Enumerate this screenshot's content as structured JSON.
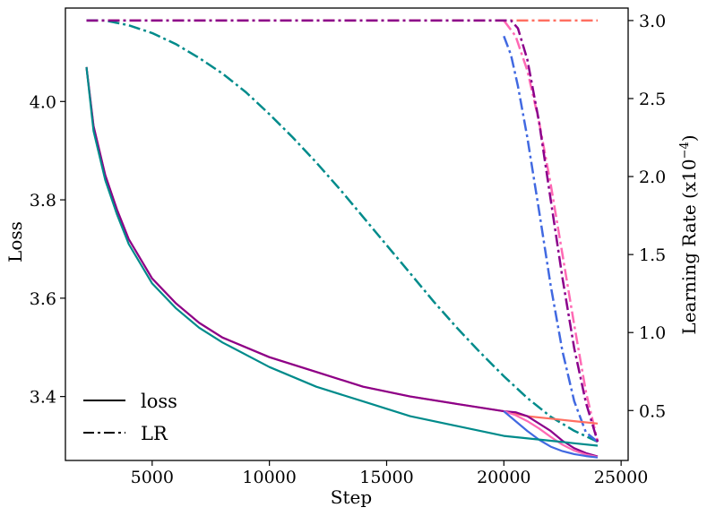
{
  "chart_data": {
    "type": "line",
    "xlabel": "Step",
    "ylabel_left": "Loss",
    "ylabel_right": "Learning Rate (x10",
    "ylabel_right_exp": "−4",
    "ylabel_right_suffix": ")",
    "x_range": [
      1300,
      25300
    ],
    "y_left_range": [
      3.27,
      4.19
    ],
    "y_right_range": [
      0.18,
      3.08
    ],
    "x_ticks": [
      {
        "value": 5000,
        "label": "5000"
      },
      {
        "value": 10000,
        "label": "10000"
      },
      {
        "value": 15000,
        "label": "15000"
      },
      {
        "value": 20000,
        "label": "20000"
      },
      {
        "value": 25000,
        "label": "25000"
      }
    ],
    "y_left_ticks": [
      {
        "value": 3.4,
        "label": "3.4"
      },
      {
        "value": 3.6,
        "label": "3.6"
      },
      {
        "value": 3.8,
        "label": "3.8"
      },
      {
        "value": 4.0,
        "label": "4.0"
      }
    ],
    "y_right_ticks": [
      {
        "value": 0.5,
        "label": "0.5"
      },
      {
        "value": 1.0,
        "label": "1.0"
      },
      {
        "value": 1.5,
        "label": "1.5"
      },
      {
        "value": 2.0,
        "label": "2.0"
      },
      {
        "value": 2.5,
        "label": "2.5"
      },
      {
        "value": 3.0,
        "label": "3.0"
      }
    ],
    "legend": {
      "placement": "lower-left",
      "entries": [
        {
          "label": "loss",
          "style": "solid"
        },
        {
          "label": "LR",
          "style": "dashdot"
        }
      ]
    },
    "loss_series": [
      {
        "color": "#FF6F61",
        "x": [
          2200,
          2500,
          3000,
          3500,
          4000,
          5000,
          6000,
          7000,
          8000,
          10000,
          12000,
          14000,
          16000,
          18000,
          20000,
          21000,
          22000,
          23000,
          24000
        ],
        "y": [
          4.07,
          3.95,
          3.85,
          3.78,
          3.72,
          3.64,
          3.59,
          3.55,
          3.52,
          3.48,
          3.45,
          3.42,
          3.4,
          3.385,
          3.37,
          3.36,
          3.355,
          3.35,
          3.345
        ]
      },
      {
        "color": "#8B008B",
        "x": [
          2200,
          2500,
          3000,
          3500,
          4000,
          5000,
          6000,
          7000,
          8000,
          10000,
          12000,
          14000,
          16000,
          18000,
          20000,
          20500,
          21000,
          21500,
          22000,
          22500,
          23000,
          23500,
          24000
        ],
        "y": [
          4.07,
          3.95,
          3.85,
          3.78,
          3.72,
          3.64,
          3.59,
          3.55,
          3.52,
          3.48,
          3.45,
          3.42,
          3.4,
          3.385,
          3.37,
          3.368,
          3.36,
          3.345,
          3.33,
          3.31,
          3.295,
          3.285,
          3.278
        ]
      },
      {
        "color": "#FF69B4",
        "x": [
          20000,
          20500,
          21000,
          21500,
          22000,
          22500,
          23000,
          23500,
          24000
        ],
        "y": [
          3.37,
          3.362,
          3.35,
          3.335,
          3.318,
          3.302,
          3.29,
          3.282,
          3.277
        ]
      },
      {
        "color": "#4169E1",
        "x": [
          20000,
          20500,
          21000,
          21500,
          22000,
          22500,
          23000,
          23500,
          24000
        ],
        "y": [
          3.37,
          3.35,
          3.33,
          3.312,
          3.298,
          3.289,
          3.283,
          3.279,
          3.276
        ]
      },
      {
        "color": "#008B8B",
        "x": [
          2200,
          2500,
          3000,
          3500,
          4000,
          5000,
          6000,
          7000,
          8000,
          10000,
          12000,
          14000,
          16000,
          18000,
          20000,
          22000,
          23000,
          24000
        ],
        "y": [
          4.07,
          3.94,
          3.84,
          3.77,
          3.71,
          3.63,
          3.58,
          3.54,
          3.51,
          3.46,
          3.42,
          3.39,
          3.36,
          3.34,
          3.32,
          3.31,
          3.305,
          3.3
        ]
      }
    ],
    "lr_series": [
      {
        "color": "#FF6F61",
        "x": [
          2200,
          24000
        ],
        "y": [
          3.0,
          3.0
        ]
      },
      {
        "color": "#008B8B",
        "x": [
          2200,
          3000,
          4000,
          5000,
          6000,
          7000,
          8000,
          9000,
          10000,
          11000,
          12000,
          13000,
          14000,
          15000,
          16000,
          17000,
          18000,
          19000,
          20000,
          21000,
          22000,
          23000,
          24000
        ],
        "y": [
          3.0,
          3.0,
          2.97,
          2.92,
          2.85,
          2.76,
          2.66,
          2.54,
          2.4,
          2.25,
          2.09,
          1.92,
          1.74,
          1.56,
          1.38,
          1.2,
          1.03,
          0.87,
          0.72,
          0.58,
          0.46,
          0.37,
          0.3
        ]
      },
      {
        "color": "#4169E1",
        "x": [
          20000,
          20300,
          20600,
          21000,
          21500,
          22000,
          22500,
          23000,
          23500,
          24000
        ],
        "y": [
          2.9,
          2.78,
          2.58,
          2.25,
          1.78,
          1.3,
          0.88,
          0.56,
          0.36,
          0.3
        ]
      },
      {
        "color": "#FF69B4",
        "x": [
          20000,
          20500,
          21000,
          21500,
          22000,
          22500,
          23000,
          23500,
          24000
        ],
        "y": [
          3.0,
          2.9,
          2.68,
          2.35,
          1.95,
          1.5,
          1.05,
          0.62,
          0.3
        ]
      },
      {
        "color": "#8B008B",
        "x": [
          2200,
          20300,
          20600,
          21000,
          21500,
          22000,
          22500,
          23000,
          23500,
          24000
        ],
        "y": [
          3.0,
          3.0,
          2.95,
          2.75,
          2.35,
          1.85,
          1.35,
          0.9,
          0.55,
          0.3
        ]
      }
    ]
  }
}
